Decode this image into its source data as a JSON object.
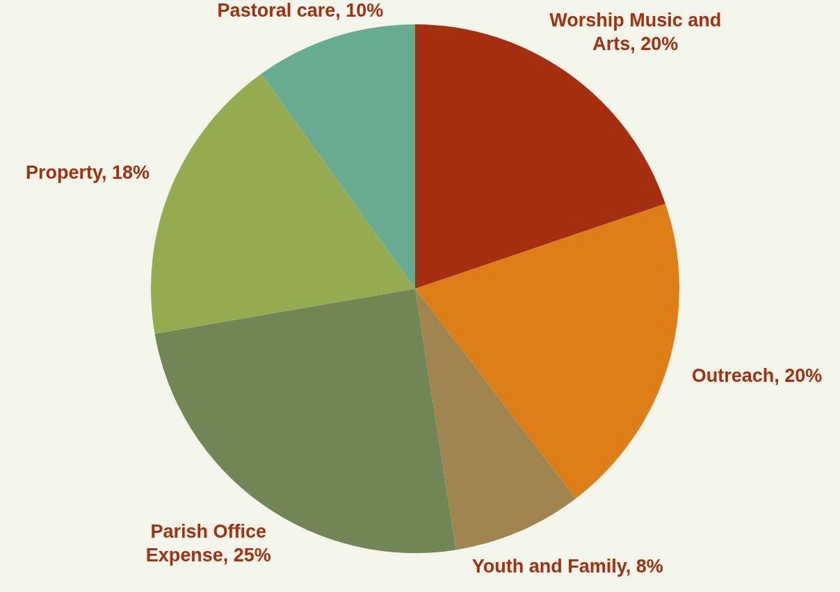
{
  "chart_data": {
    "type": "pie",
    "categories": [
      "Worship Music and Arts",
      "Outreach",
      "Youth and Family",
      "Parish Office Expense",
      "Property",
      "Pastoral care"
    ],
    "values": [
      20,
      20,
      8,
      25,
      18,
      10
    ],
    "colors": [
      "#a32e10",
      "#de7e18",
      "#a08550",
      "#718654",
      "#94ab4f",
      "#67ab90"
    ],
    "value_labels": [
      "20%",
      "20%",
      "8%",
      "25%",
      "18%",
      "10%"
    ],
    "legend": false
  }
}
